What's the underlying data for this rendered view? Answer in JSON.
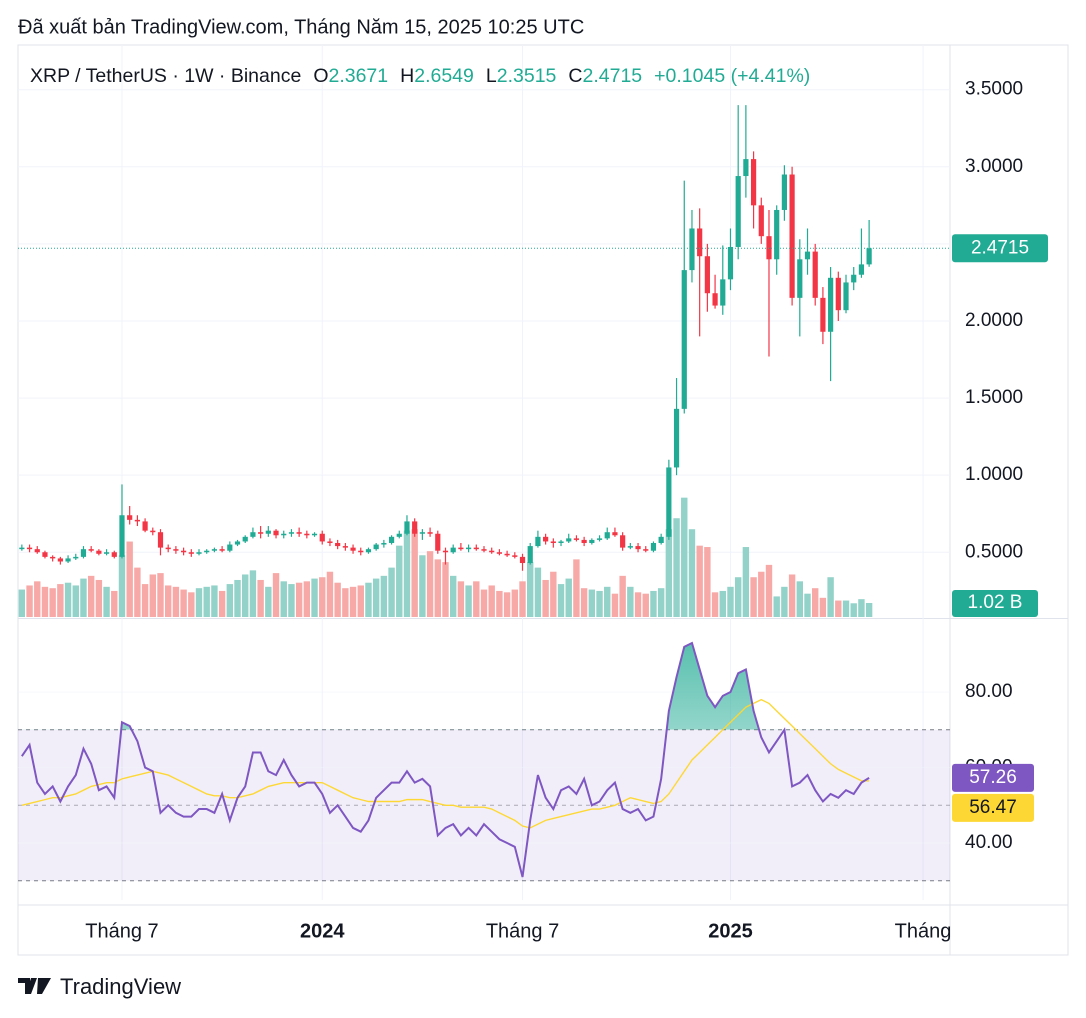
{
  "header": {
    "published": "Đã xuất bản TradingView.com, Tháng Năm 15, 2025 10:25 UTC"
  },
  "footer": {
    "brand": "TradingView"
  },
  "chart_data": [
    {
      "type": "candlestick",
      "title": "XRP / TetherUS · 1W · Binance",
      "ohlc_letters": [
        "O",
        "H",
        "L",
        "C"
      ],
      "change": "+0.1045 (+4.41%)",
      "up_color": "#22ab94",
      "down_color": "#f23645",
      "grid": true,
      "last_price_line": true,
      "xlim": [
        -0.5,
        120.5
      ],
      "xticks": [
        {
          "value": 13,
          "label": "Tháng 7"
        },
        {
          "value": 39,
          "label": "2024"
        },
        {
          "value": 65,
          "label": "Tháng 7"
        },
        {
          "value": 92,
          "label": "2025"
        },
        {
          "value": 117,
          "label": "Tháng"
        }
      ],
      "ylim": [
        0.08,
        3.79
      ],
      "yticks": [
        {
          "value": 0.5,
          "label": "0.5000"
        },
        {
          "value": 1,
          "label": "1.0000"
        },
        {
          "value": 1.5,
          "label": "1.5000"
        },
        {
          "value": 2,
          "label": "2.0000"
        },
        {
          "value": 2.5,
          "label": "2.5000"
        },
        {
          "value": 3,
          "label": "3.0000"
        },
        {
          "value": 3.5,
          "label": "3.5000"
        }
      ],
      "open": [
        0.52,
        0.53,
        0.52,
        0.5,
        0.47,
        0.46,
        0.44,
        0.46,
        0.47,
        0.52,
        0.51,
        0.49,
        0.5,
        0.47,
        0.74,
        0.71,
        0.7,
        0.64,
        0.63,
        0.53,
        0.52,
        0.51,
        0.5,
        0.49,
        0.5,
        0.51,
        0.52,
        0.51,
        0.55,
        0.57,
        0.6,
        0.63,
        0.62,
        0.64,
        0.61,
        0.62,
        0.63,
        0.62,
        0.61,
        0.62,
        0.57,
        0.56,
        0.54,
        0.53,
        0.51,
        0.5,
        0.52,
        0.55,
        0.56,
        0.6,
        0.62,
        0.7,
        0.62,
        0.63,
        0.62,
        0.51,
        0.5,
        0.53,
        0.52,
        0.53,
        0.52,
        0.51,
        0.5,
        0.49,
        0.48,
        0.47,
        0.43,
        0.54,
        0.6,
        0.57,
        0.56,
        0.57,
        0.59,
        0.58,
        0.56,
        0.58,
        0.59,
        0.63,
        0.61,
        0.53,
        0.54,
        0.52,
        0.51,
        0.56,
        0.6,
        1.05,
        1.43,
        2.33,
        2.6,
        2.42,
        2.18,
        2.1,
        2.27,
        2.48,
        2.94,
        3.05,
        2.75,
        2.55,
        2.4,
        2.72,
        2.95,
        2.15,
        2.4,
        2.45,
        2.15,
        1.93,
        2.28,
        2.07,
        2.25,
        2.3,
        2.3671
      ],
      "high": [
        0.55,
        0.55,
        0.54,
        0.51,
        0.48,
        0.47,
        0.48,
        0.49,
        0.54,
        0.54,
        0.52,
        0.52,
        0.51,
        0.94,
        0.8,
        0.74,
        0.72,
        0.66,
        0.65,
        0.55,
        0.54,
        0.53,
        0.52,
        0.52,
        0.52,
        0.53,
        0.54,
        0.57,
        0.58,
        0.61,
        0.66,
        0.67,
        0.67,
        0.65,
        0.64,
        0.65,
        0.66,
        0.64,
        0.63,
        0.64,
        0.59,
        0.58,
        0.56,
        0.55,
        0.53,
        0.53,
        0.56,
        0.58,
        0.61,
        0.64,
        0.74,
        0.72,
        0.65,
        0.66,
        0.64,
        0.53,
        0.55,
        0.56,
        0.55,
        0.55,
        0.54,
        0.53,
        0.52,
        0.51,
        0.5,
        0.49,
        0.56,
        0.64,
        0.62,
        0.59,
        0.58,
        0.62,
        0.61,
        0.6,
        0.59,
        0.61,
        0.66,
        0.66,
        0.63,
        0.56,
        0.56,
        0.54,
        0.57,
        0.62,
        1.1,
        1.63,
        2.91,
        2.72,
        2.73,
        2.5,
        2.3,
        2.49,
        2.6,
        3.4,
        3.4,
        3.1,
        2.8,
        2.72,
        2.75,
        3.01,
        3.0,
        2.53,
        2.6,
        2.5,
        2.22,
        2.35,
        2.32,
        2.3,
        2.35,
        2.6,
        2.6549
      ],
      "low": [
        0.51,
        0.5,
        0.49,
        0.46,
        0.44,
        0.42,
        0.43,
        0.45,
        0.46,
        0.5,
        0.48,
        0.48,
        0.46,
        0.46,
        0.68,
        0.67,
        0.63,
        0.61,
        0.48,
        0.5,
        0.49,
        0.48,
        0.47,
        0.48,
        0.49,
        0.5,
        0.5,
        0.5,
        0.54,
        0.56,
        0.59,
        0.59,
        0.6,
        0.59,
        0.59,
        0.6,
        0.6,
        0.59,
        0.6,
        0.55,
        0.54,
        0.52,
        0.51,
        0.49,
        0.48,
        0.49,
        0.51,
        0.53,
        0.55,
        0.59,
        0.61,
        0.6,
        0.58,
        0.6,
        0.49,
        0.42,
        0.49,
        0.51,
        0.5,
        0.51,
        0.5,
        0.49,
        0.48,
        0.47,
        0.46,
        0.38,
        0.42,
        0.53,
        0.55,
        0.53,
        0.54,
        0.56,
        0.57,
        0.54,
        0.55,
        0.57,
        0.58,
        0.6,
        0.51,
        0.52,
        0.5,
        0.5,
        0.5,
        0.55,
        0.58,
        1.0,
        1.4,
        2.25,
        1.9,
        2.06,
        2.08,
        2.04,
        2.2,
        2.4,
        2.8,
        2.6,
        2.5,
        1.77,
        2.3,
        2.65,
        2.1,
        1.9,
        2.3,
        2.1,
        1.85,
        1.61,
        2.0,
        2.05,
        2.2,
        2.28,
        2.3515
      ],
      "close": [
        0.53,
        0.52,
        0.5,
        0.47,
        0.46,
        0.44,
        0.46,
        0.47,
        0.52,
        0.51,
        0.49,
        0.5,
        0.47,
        0.74,
        0.71,
        0.7,
        0.64,
        0.63,
        0.53,
        0.52,
        0.51,
        0.5,
        0.49,
        0.5,
        0.51,
        0.52,
        0.51,
        0.55,
        0.57,
        0.6,
        0.63,
        0.62,
        0.64,
        0.61,
        0.62,
        0.63,
        0.62,
        0.61,
        0.62,
        0.57,
        0.56,
        0.54,
        0.53,
        0.51,
        0.5,
        0.52,
        0.55,
        0.56,
        0.6,
        0.62,
        0.7,
        0.62,
        0.63,
        0.62,
        0.51,
        0.5,
        0.53,
        0.52,
        0.53,
        0.52,
        0.51,
        0.5,
        0.49,
        0.48,
        0.47,
        0.43,
        0.54,
        0.6,
        0.57,
        0.56,
        0.57,
        0.59,
        0.58,
        0.56,
        0.58,
        0.59,
        0.63,
        0.61,
        0.53,
        0.54,
        0.52,
        0.51,
        0.56,
        0.6,
        1.05,
        1.43,
        2.33,
        2.6,
        2.42,
        2.18,
        2.1,
        2.27,
        2.48,
        2.94,
        3.05,
        2.75,
        2.55,
        2.4,
        2.72,
        2.95,
        2.15,
        2.4,
        2.45,
        2.15,
        1.93,
        2.28,
        2.07,
        2.25,
        2.3,
        2.3671,
        2.4715
      ],
      "volume": {
        "up_color": "#92d2c8",
        "down_color": "#f7a9a7",
        "ylim": [
          0,
          41.7
        ],
        "values": [
          2.0,
          2.3,
          2.6,
          2.2,
          2.1,
          2.4,
          2.5,
          2.3,
          2.8,
          3.0,
          2.7,
          2.2,
          1.9,
          4.5,
          5.5,
          3.6,
          2.4,
          3.1,
          3.2,
          2.3,
          2.2,
          2.0,
          1.8,
          2.1,
          2.2,
          2.3,
          1.9,
          2.4,
          2.7,
          3.1,
          3.4,
          2.7,
          2.2,
          3.2,
          2.6,
          2.4,
          2.5,
          2.6,
          2.8,
          2.9,
          3.3,
          2.5,
          2.1,
          2.2,
          2.3,
          2.5,
          2.8,
          3.0,
          3.6,
          5.2,
          6.3,
          6.4,
          4.5,
          4.8,
          4.2,
          4.0,
          3.0,
          2.6,
          2.3,
          2.6,
          2.0,
          2.3,
          1.9,
          1.8,
          2.0,
          2.6,
          4.0,
          3.6,
          2.7,
          3.3,
          2.4,
          2.8,
          4.2,
          2.1,
          2.0,
          1.9,
          2.2,
          1.7,
          3.0,
          2.2,
          1.8,
          1.7,
          1.9,
          2.1,
          6.4,
          7.2,
          8.7,
          6.4,
          5.2,
          5.1,
          1.8,
          1.9,
          2.2,
          2.9,
          5.1,
          2.9,
          3.3,
          3.8,
          1.5,
          2.2,
          3.1,
          2.6,
          1.7,
          2.1,
          1.4,
          2.9,
          1.2,
          1.2,
          1.0,
          1.3,
          1.02
        ],
        "value_labels": [
          null,
          null,
          null,
          null,
          null,
          null,
          null,
          null,
          null,
          null,
          null,
          null,
          null,
          null,
          null,
          null,
          null,
          null,
          null,
          null,
          null,
          null,
          null,
          null,
          null,
          null,
          null,
          null,
          null,
          null,
          null,
          null,
          null,
          null,
          null,
          null,
          null,
          null,
          null,
          null,
          null,
          null,
          null,
          null,
          null,
          null,
          null,
          null,
          null,
          null,
          null,
          null,
          null,
          null,
          null,
          null,
          null,
          null,
          null,
          null,
          null,
          null,
          null,
          null,
          null,
          null,
          null,
          null,
          null,
          null,
          null,
          null,
          null,
          null,
          null,
          null,
          null,
          null,
          null,
          null,
          null,
          null,
          null,
          null,
          null,
          null,
          null,
          null,
          null,
          null,
          null,
          null,
          null,
          null,
          null,
          null,
          null,
          null,
          null,
          null,
          null,
          null,
          null,
          null,
          null,
          null,
          null,
          null,
          null,
          null,
          "1.02 B"
        ]
      }
    },
    {
      "type": "line",
      "xlim": [
        -0.5,
        120.5
      ],
      "ylim": [
        24.9,
        99.1
      ],
      "yticks": [
        {
          "value": 40,
          "label": "40.00"
        },
        {
          "value": 60,
          "label": "60.00"
        },
        {
          "value": 80,
          "label": "80.00"
        }
      ],
      "band": [
        30,
        70
      ],
      "midline": 50,
      "band_color": "#7e57c2",
      "series": [
        {
          "color": "#7e57c2",
          "values": [
            63,
            66,
            56,
            53,
            55,
            51,
            55,
            58,
            65,
            61,
            54,
            55,
            52,
            72,
            71,
            67,
            60,
            59,
            48,
            50,
            48,
            47,
            47,
            49,
            49,
            48,
            53,
            46,
            52,
            55,
            64,
            64,
            59,
            58,
            62,
            58,
            55,
            56,
            56,
            53,
            48,
            50,
            47,
            44,
            43,
            46,
            52,
            54,
            56,
            56,
            59,
            56,
            57,
            55,
            42,
            44,
            45,
            42,
            44,
            42,
            45,
            43,
            41,
            40,
            39,
            31,
            46,
            58,
            52,
            49,
            54,
            55,
            53,
            57,
            50,
            51,
            54,
            56,
            49,
            48,
            49,
            46,
            47,
            57,
            75,
            84,
            92,
            93,
            86,
            79,
            76,
            79,
            80,
            85,
            86,
            75,
            68,
            64,
            67,
            70,
            55,
            56,
            58,
            54,
            51,
            53,
            52,
            54,
            53,
            56,
            57.26
          ]
        },
        {
          "color": "#fdd835",
          "values": [
            50,
            50.5,
            51,
            51.5,
            52,
            52,
            52.5,
            53,
            54,
            55,
            55.5,
            56,
            56,
            57,
            57.5,
            58,
            58.5,
            59,
            58.5,
            58,
            57,
            56,
            55,
            54,
            53,
            52.5,
            52.5,
            52,
            52,
            52.5,
            53,
            54,
            55,
            55.5,
            56,
            56,
            56,
            56,
            56,
            56,
            55,
            54,
            53,
            52,
            51.5,
            51,
            51,
            51,
            51,
            51,
            51.5,
            51.5,
            51.5,
            51,
            50.5,
            50,
            50,
            49.5,
            49.5,
            49.5,
            49.5,
            49,
            48,
            47,
            46,
            44.5,
            44,
            45,
            46,
            46.5,
            47,
            47.5,
            48,
            48.5,
            49,
            49,
            49.5,
            50,
            51,
            52,
            51.5,
            51,
            50.5,
            51,
            53,
            56,
            59,
            62,
            64,
            66,
            68,
            70,
            72,
            74,
            76,
            77,
            78,
            77,
            75,
            73,
            71,
            69,
            67,
            65,
            63,
            61,
            59.5,
            58.5,
            57.5,
            56.5,
            56.47
          ]
        }
      ]
    }
  ]
}
